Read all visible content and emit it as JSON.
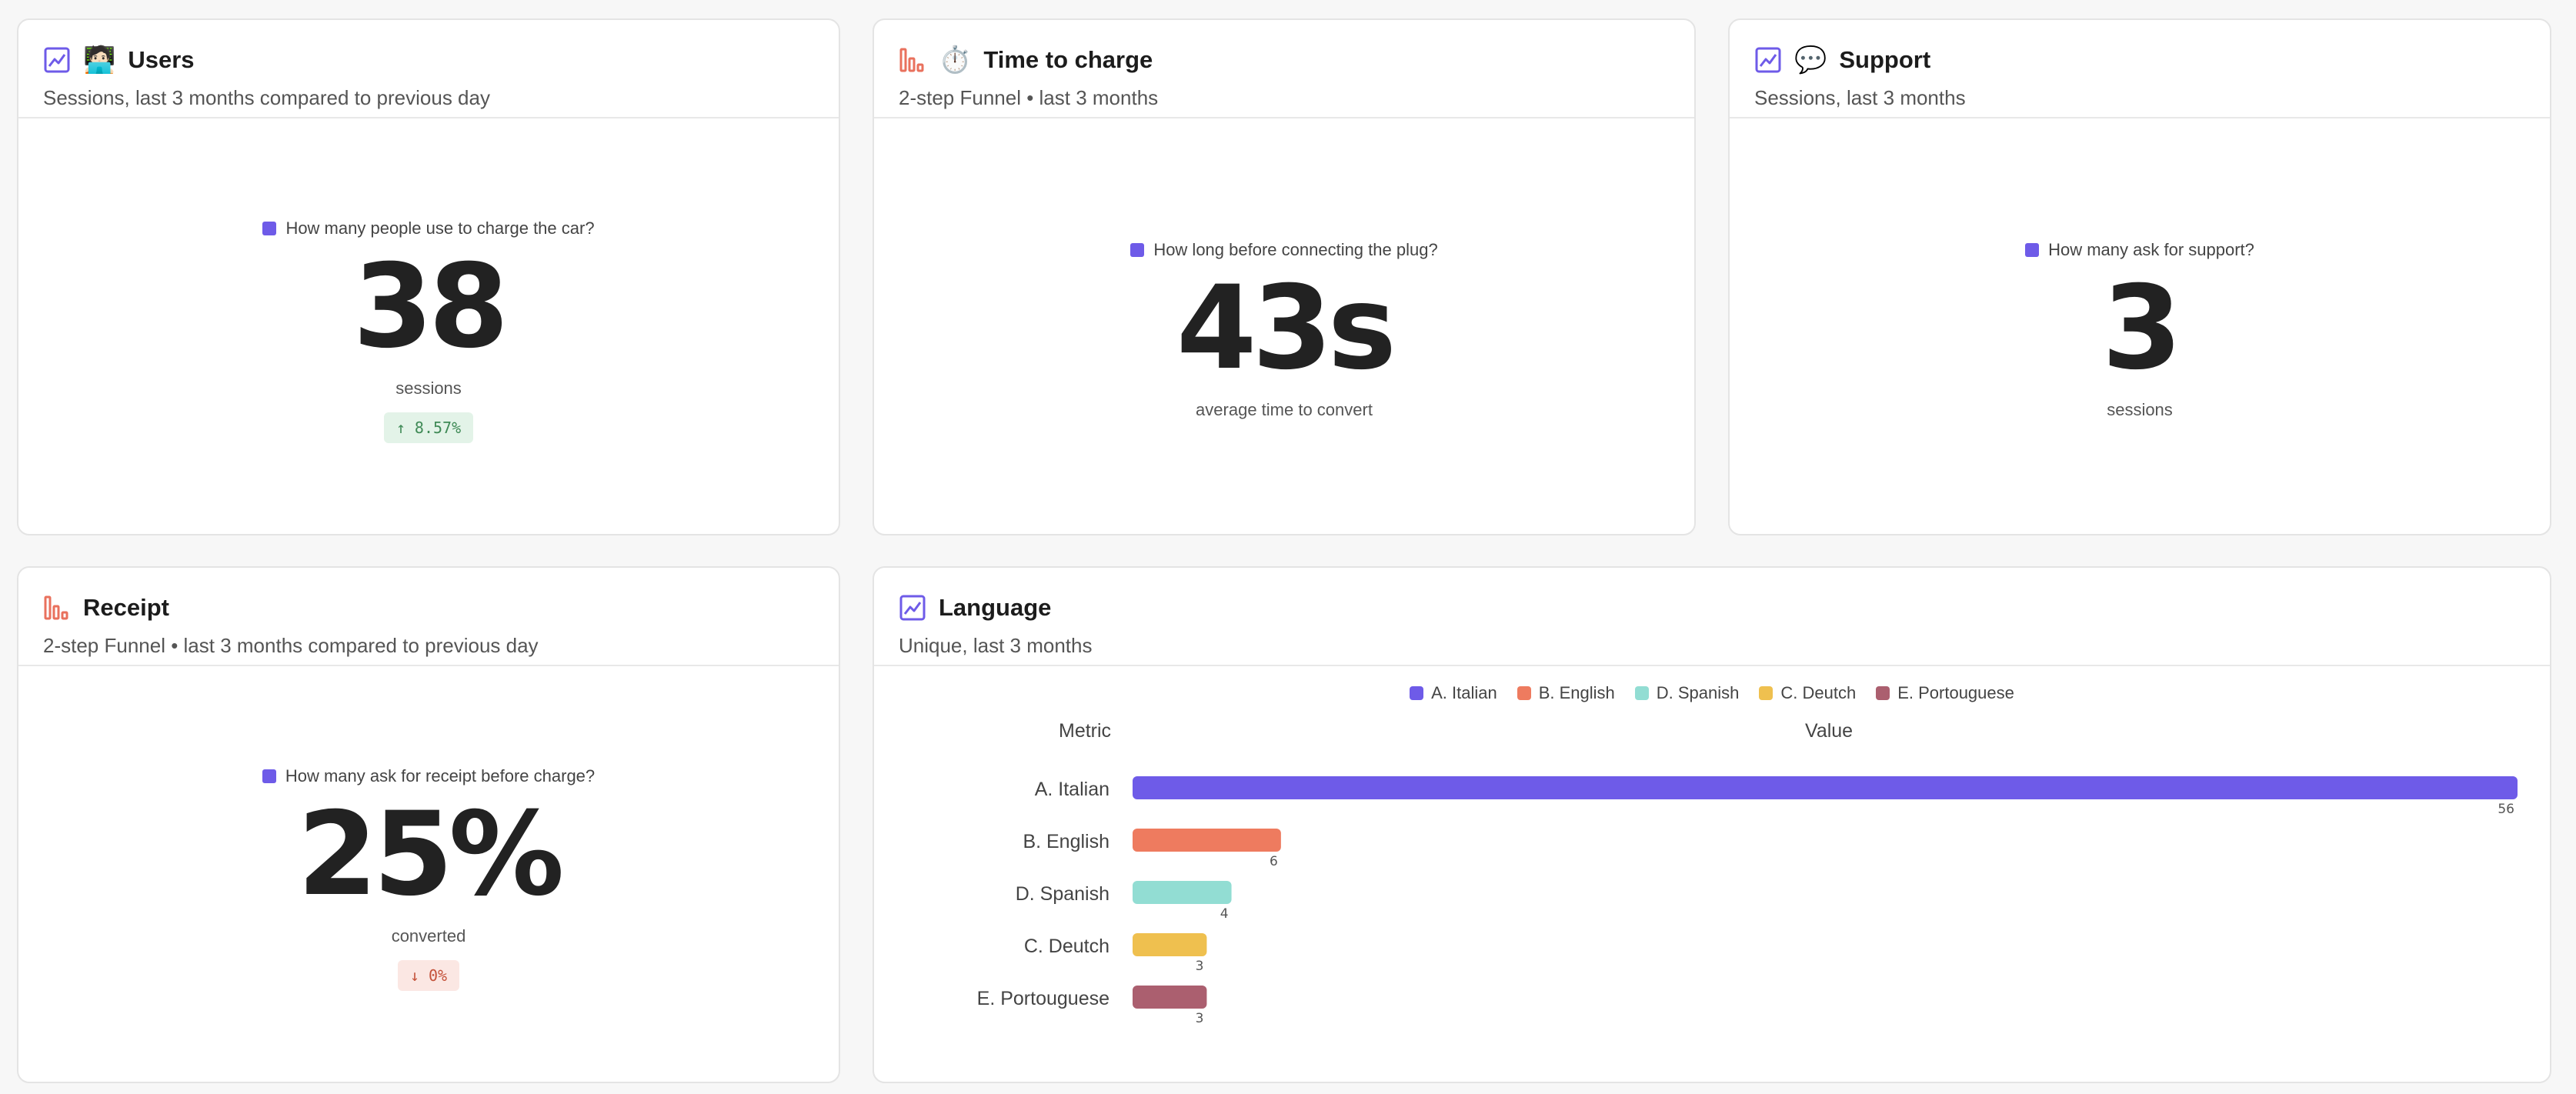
{
  "colors": {
    "accent": "#6e5be8",
    "funnel": "#e9715d",
    "up_bg": "#e3f3e8",
    "up_fg": "#3f8a56",
    "down_bg": "#fbe7e3",
    "down_fg": "#c4523a"
  },
  "cards": {
    "users": {
      "icon": "insights-chart-icon",
      "emoji": "🧑🏻‍💻",
      "title": "Users",
      "subtitle": "Sessions, last 3 months compared to previous day",
      "question": "How many people use to charge the car?",
      "value": "38",
      "unit": "sessions",
      "delta": "↑ 8.57%"
    },
    "time_to_charge": {
      "icon": "funnel-chart-icon",
      "emoji": "⏱️",
      "title": "Time to charge",
      "subtitle": "2-step Funnel • last 3 months",
      "question": "How long before connecting the plug?",
      "value": "43s",
      "unit": "average time to convert"
    },
    "support": {
      "icon": "insights-chart-icon",
      "emoji": "💬",
      "title": "Support",
      "subtitle": "Sessions, last 3 months",
      "question": "How many ask for support?",
      "value": "3",
      "unit": "sessions"
    },
    "receipt": {
      "icon": "funnel-chart-icon",
      "title": "Receipt",
      "subtitle": "2-step Funnel • last 3 months compared to previous day",
      "question": "How many ask for receipt before charge?",
      "value": "25%",
      "unit": "converted",
      "delta": "↓ 0%"
    },
    "language": {
      "icon": "insights-chart-icon",
      "title": "Language",
      "subtitle": "Unique, last 3 months",
      "col_metric": "Metric",
      "col_value": "Value"
    }
  },
  "chart_data": {
    "type": "bar",
    "orientation": "horizontal",
    "categories": [
      "A. Italian",
      "B. English",
      "D. Spanish",
      "C. Deutch",
      "E. Portouguese"
    ],
    "values": [
      56,
      6,
      4,
      3,
      3
    ],
    "colors": [
      "#6e5be8",
      "#ee7b5f",
      "#92ddd3",
      "#efc04f",
      "#ab5f6f"
    ],
    "legend": [
      "A. Italian",
      "B. English",
      "D. Spanish",
      "C. Deutch",
      "E. Portouguese"
    ],
    "legend_position": "top",
    "xlim": [
      0,
      56
    ],
    "xlabel": "Value",
    "ylabel": "Metric",
    "grid": false
  }
}
